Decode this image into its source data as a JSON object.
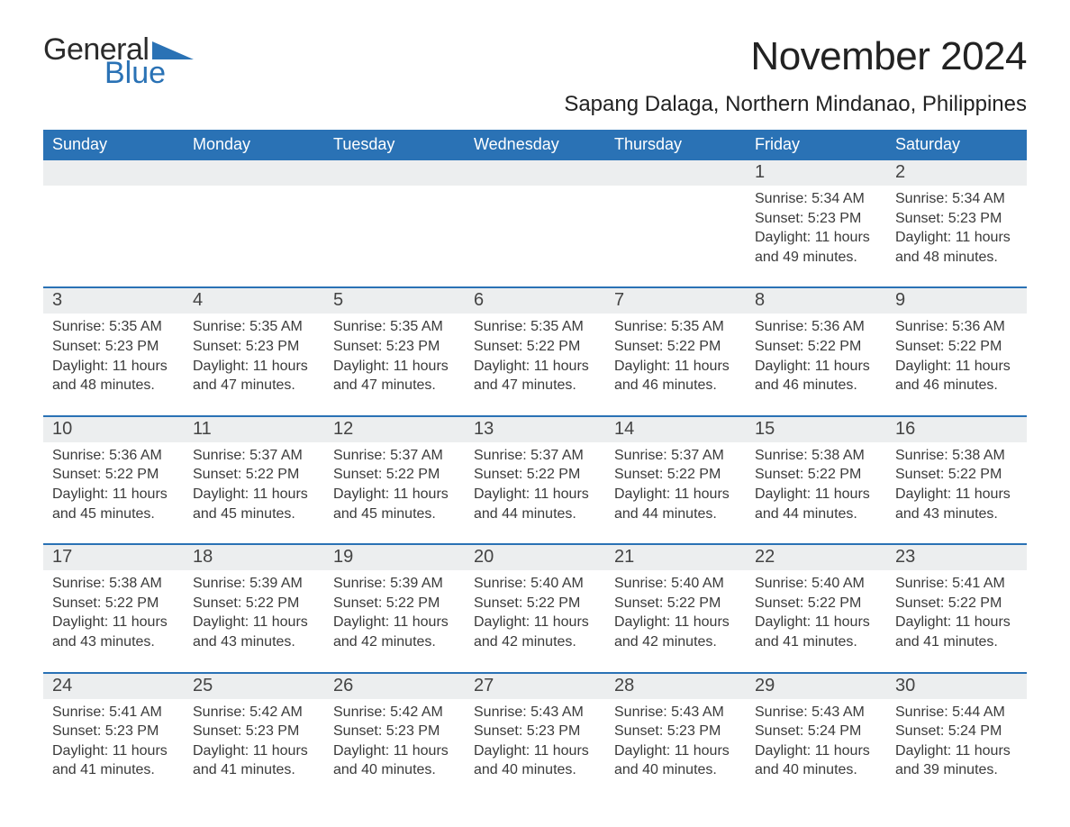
{
  "brand": {
    "text1": "General",
    "text2": "Blue"
  },
  "colors": {
    "brand_blue": "#2a72b5",
    "header_bg": "#2a72b5",
    "header_text": "#ffffff",
    "daynum_bg": "#eceeef",
    "divider": "#2a72b5",
    "page_bg": "#ffffff",
    "body_text": "#2b2b2b"
  },
  "typography": {
    "month_title_pt": 44,
    "location_pt": 24,
    "dow_pt": 18,
    "daynum_pt": 20,
    "body_pt": 16,
    "family": "Arial"
  },
  "title": "November 2024",
  "location": "Sapang Dalaga, Northern Mindanao, Philippines",
  "days_of_week": [
    "Sunday",
    "Monday",
    "Tuesday",
    "Wednesday",
    "Thursday",
    "Friday",
    "Saturday"
  ],
  "weeks": [
    [
      {
        "n": "",
        "sunrise": "",
        "sunset": "",
        "daylight": ""
      },
      {
        "n": "",
        "sunrise": "",
        "sunset": "",
        "daylight": ""
      },
      {
        "n": "",
        "sunrise": "",
        "sunset": "",
        "daylight": ""
      },
      {
        "n": "",
        "sunrise": "",
        "sunset": "",
        "daylight": ""
      },
      {
        "n": "",
        "sunrise": "",
        "sunset": "",
        "daylight": ""
      },
      {
        "n": "1",
        "sunrise": "Sunrise: 5:34 AM",
        "sunset": "Sunset: 5:23 PM",
        "daylight": "Daylight: 11 hours and 49 minutes."
      },
      {
        "n": "2",
        "sunrise": "Sunrise: 5:34 AM",
        "sunset": "Sunset: 5:23 PM",
        "daylight": "Daylight: 11 hours and 48 minutes."
      }
    ],
    [
      {
        "n": "3",
        "sunrise": "Sunrise: 5:35 AM",
        "sunset": "Sunset: 5:23 PM",
        "daylight": "Daylight: 11 hours and 48 minutes."
      },
      {
        "n": "4",
        "sunrise": "Sunrise: 5:35 AM",
        "sunset": "Sunset: 5:23 PM",
        "daylight": "Daylight: 11 hours and 47 minutes."
      },
      {
        "n": "5",
        "sunrise": "Sunrise: 5:35 AM",
        "sunset": "Sunset: 5:23 PM",
        "daylight": "Daylight: 11 hours and 47 minutes."
      },
      {
        "n": "6",
        "sunrise": "Sunrise: 5:35 AM",
        "sunset": "Sunset: 5:22 PM",
        "daylight": "Daylight: 11 hours and 47 minutes."
      },
      {
        "n": "7",
        "sunrise": "Sunrise: 5:35 AM",
        "sunset": "Sunset: 5:22 PM",
        "daylight": "Daylight: 11 hours and 46 minutes."
      },
      {
        "n": "8",
        "sunrise": "Sunrise: 5:36 AM",
        "sunset": "Sunset: 5:22 PM",
        "daylight": "Daylight: 11 hours and 46 minutes."
      },
      {
        "n": "9",
        "sunrise": "Sunrise: 5:36 AM",
        "sunset": "Sunset: 5:22 PM",
        "daylight": "Daylight: 11 hours and 46 minutes."
      }
    ],
    [
      {
        "n": "10",
        "sunrise": "Sunrise: 5:36 AM",
        "sunset": "Sunset: 5:22 PM",
        "daylight": "Daylight: 11 hours and 45 minutes."
      },
      {
        "n": "11",
        "sunrise": "Sunrise: 5:37 AM",
        "sunset": "Sunset: 5:22 PM",
        "daylight": "Daylight: 11 hours and 45 minutes."
      },
      {
        "n": "12",
        "sunrise": "Sunrise: 5:37 AM",
        "sunset": "Sunset: 5:22 PM",
        "daylight": "Daylight: 11 hours and 45 minutes."
      },
      {
        "n": "13",
        "sunrise": "Sunrise: 5:37 AM",
        "sunset": "Sunset: 5:22 PM",
        "daylight": "Daylight: 11 hours and 44 minutes."
      },
      {
        "n": "14",
        "sunrise": "Sunrise: 5:37 AM",
        "sunset": "Sunset: 5:22 PM",
        "daylight": "Daylight: 11 hours and 44 minutes."
      },
      {
        "n": "15",
        "sunrise": "Sunrise: 5:38 AM",
        "sunset": "Sunset: 5:22 PM",
        "daylight": "Daylight: 11 hours and 44 minutes."
      },
      {
        "n": "16",
        "sunrise": "Sunrise: 5:38 AM",
        "sunset": "Sunset: 5:22 PM",
        "daylight": "Daylight: 11 hours and 43 minutes."
      }
    ],
    [
      {
        "n": "17",
        "sunrise": "Sunrise: 5:38 AM",
        "sunset": "Sunset: 5:22 PM",
        "daylight": "Daylight: 11 hours and 43 minutes."
      },
      {
        "n": "18",
        "sunrise": "Sunrise: 5:39 AM",
        "sunset": "Sunset: 5:22 PM",
        "daylight": "Daylight: 11 hours and 43 minutes."
      },
      {
        "n": "19",
        "sunrise": "Sunrise: 5:39 AM",
        "sunset": "Sunset: 5:22 PM",
        "daylight": "Daylight: 11 hours and 42 minutes."
      },
      {
        "n": "20",
        "sunrise": "Sunrise: 5:40 AM",
        "sunset": "Sunset: 5:22 PM",
        "daylight": "Daylight: 11 hours and 42 minutes."
      },
      {
        "n": "21",
        "sunrise": "Sunrise: 5:40 AM",
        "sunset": "Sunset: 5:22 PM",
        "daylight": "Daylight: 11 hours and 42 minutes."
      },
      {
        "n": "22",
        "sunrise": "Sunrise: 5:40 AM",
        "sunset": "Sunset: 5:22 PM",
        "daylight": "Daylight: 11 hours and 41 minutes."
      },
      {
        "n": "23",
        "sunrise": "Sunrise: 5:41 AM",
        "sunset": "Sunset: 5:22 PM",
        "daylight": "Daylight: 11 hours and 41 minutes."
      }
    ],
    [
      {
        "n": "24",
        "sunrise": "Sunrise: 5:41 AM",
        "sunset": "Sunset: 5:23 PM",
        "daylight": "Daylight: 11 hours and 41 minutes."
      },
      {
        "n": "25",
        "sunrise": "Sunrise: 5:42 AM",
        "sunset": "Sunset: 5:23 PM",
        "daylight": "Daylight: 11 hours and 41 minutes."
      },
      {
        "n": "26",
        "sunrise": "Sunrise: 5:42 AM",
        "sunset": "Sunset: 5:23 PM",
        "daylight": "Daylight: 11 hours and 40 minutes."
      },
      {
        "n": "27",
        "sunrise": "Sunrise: 5:43 AM",
        "sunset": "Sunset: 5:23 PM",
        "daylight": "Daylight: 11 hours and 40 minutes."
      },
      {
        "n": "28",
        "sunrise": "Sunrise: 5:43 AM",
        "sunset": "Sunset: 5:23 PM",
        "daylight": "Daylight: 11 hours and 40 minutes."
      },
      {
        "n": "29",
        "sunrise": "Sunrise: 5:43 AM",
        "sunset": "Sunset: 5:24 PM",
        "daylight": "Daylight: 11 hours and 40 minutes."
      },
      {
        "n": "30",
        "sunrise": "Sunrise: 5:44 AM",
        "sunset": "Sunset: 5:24 PM",
        "daylight": "Daylight: 11 hours and 39 minutes."
      }
    ]
  ]
}
